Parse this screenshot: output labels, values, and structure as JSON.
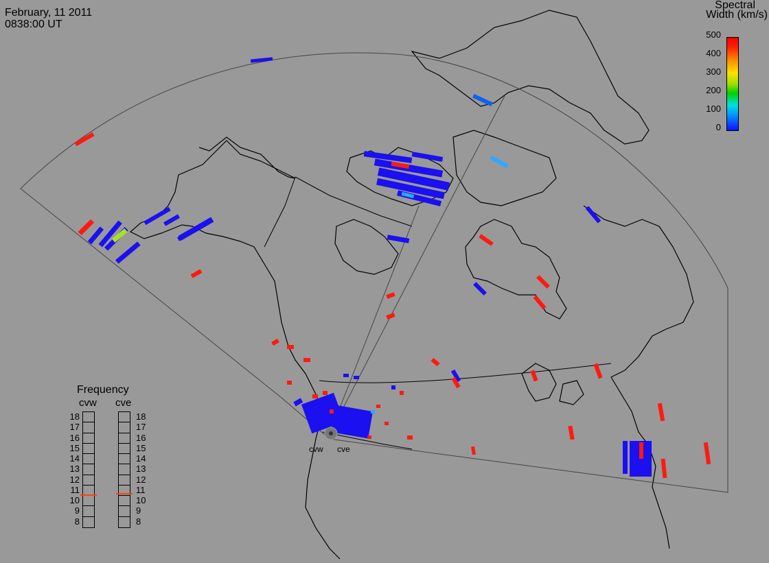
{
  "header": {
    "date": "February, 11 2011",
    "time": "0838:00 UT"
  },
  "colorbar": {
    "title_line1": "Spectral",
    "title_line2": "Width (km/s)",
    "ticks": [
      "500",
      "400",
      "300",
      "200",
      "100",
      "0"
    ],
    "colors": [
      "#0000ff",
      "#00c0ff",
      "#00e000",
      "#f0f000",
      "#ff8000",
      "#ff0000"
    ]
  },
  "frequency": {
    "title": "Frequency",
    "radars": [
      {
        "name": "cvw",
        "current_mhz": 10.6
      },
      {
        "name": "cve",
        "current_mhz": 10.7
      }
    ],
    "scale": [
      "18",
      "17",
      "16",
      "15",
      "14",
      "13",
      "12",
      "11",
      "10",
      "9",
      "8"
    ]
  },
  "radar_sites": {
    "west": "cvw",
    "east": "cve"
  }
}
